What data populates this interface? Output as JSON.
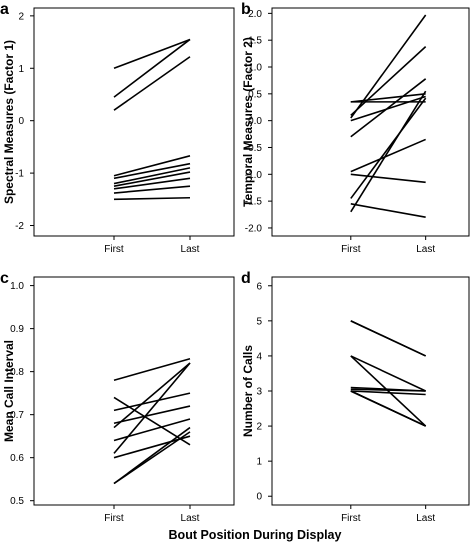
{
  "figure": {
    "xlabel": "Bout Position During Display"
  },
  "chart_data": [
    {
      "type": "line",
      "panel": "a",
      "categories": [
        "First",
        "Last"
      ],
      "ylabel": "Spectral Measures (Factor 1)",
      "ylim": [
        -2.2,
        2.15
      ],
      "yticks": [
        -2,
        -1,
        0,
        1,
        2
      ],
      "ytick_labels": [
        "-2",
        "-1",
        "0",
        "1",
        "2"
      ],
      "series": [
        {
          "values": [
            1.0,
            1.55
          ]
        },
        {
          "values": [
            0.45,
            1.55
          ]
        },
        {
          "values": [
            0.2,
            1.22
          ]
        },
        {
          "values": [
            -1.05,
            -0.67
          ]
        },
        {
          "values": [
            -1.1,
            -0.82
          ]
        },
        {
          "values": [
            -1.2,
            -0.9
          ]
        },
        {
          "values": [
            -1.25,
            -0.98
          ]
        },
        {
          "values": [
            -1.3,
            -1.1
          ]
        },
        {
          "values": [
            -1.38,
            -1.25
          ]
        },
        {
          "values": [
            -1.5,
            -1.47
          ]
        }
      ]
    },
    {
      "type": "line",
      "panel": "b",
      "categories": [
        "First",
        "Last"
      ],
      "ylabel": "Temporal Measures (Factor 2)",
      "ylim": [
        -2.15,
        2.1
      ],
      "yticks": [
        -2.0,
        -1.5,
        -1.0,
        -0.5,
        0.0,
        0.5,
        1.0,
        1.5,
        2.0
      ],
      "ytick_labels": [
        "-2.0",
        "-1.5",
        "-1.0",
        "-0.5",
        "0.0",
        "0.5",
        "1.0",
        "1.5",
        "2.0"
      ],
      "series": [
        {
          "values": [
            0.05,
            1.97
          ]
        },
        {
          "values": [
            0.1,
            1.38
          ]
        },
        {
          "values": [
            -0.3,
            0.78
          ]
        },
        {
          "values": [
            0.0,
            0.45
          ]
        },
        {
          "values": [
            0.35,
            0.35
          ]
        },
        {
          "values": [
            0.35,
            0.5
          ]
        },
        {
          "values": [
            -1.45,
            0.42
          ]
        },
        {
          "values": [
            -1.7,
            0.55
          ]
        },
        {
          "values": [
            -0.95,
            -0.35
          ]
        },
        {
          "values": [
            -1.0,
            -1.15
          ]
        },
        {
          "values": [
            -1.55,
            -1.8
          ]
        }
      ]
    },
    {
      "type": "line",
      "panel": "c",
      "categories": [
        "First",
        "Last"
      ],
      "ylabel": "Mean Call Interval",
      "ylim": [
        0.49,
        1.02
      ],
      "yticks": [
        0.5,
        0.6,
        0.7,
        0.8,
        0.9,
        1.0
      ],
      "ytick_labels": [
        "0.5",
        "0.6",
        "0.7",
        "0.8",
        "0.9",
        "1.0"
      ],
      "series": [
        {
          "values": [
            0.78,
            0.83
          ]
        },
        {
          "values": [
            0.74,
            0.63
          ]
        },
        {
          "values": [
            0.71,
            0.75
          ]
        },
        {
          "values": [
            0.68,
            0.72
          ]
        },
        {
          "values": [
            0.67,
            0.82
          ]
        },
        {
          "values": [
            0.64,
            0.69
          ]
        },
        {
          "values": [
            0.6,
            0.65
          ]
        },
        {
          "values": [
            0.61,
            0.82
          ]
        },
        {
          "values": [
            0.54,
            0.67
          ]
        },
        {
          "values": [
            0.54,
            0.66
          ]
        }
      ]
    },
    {
      "type": "line",
      "panel": "d",
      "categories": [
        "First",
        "Last"
      ],
      "ylabel": "Number of Calls",
      "ylim": [
        -0.25,
        6.25
      ],
      "yticks": [
        0,
        1,
        2,
        3,
        4,
        5,
        6
      ],
      "ytick_labels": [
        "0",
        "1",
        "2",
        "3",
        "4",
        "5",
        "6"
      ],
      "series": [
        {
          "values": [
            5.0,
            4.0
          ]
        },
        {
          "values": [
            5.0,
            4.0
          ]
        },
        {
          "values": [
            4.0,
            3.0
          ]
        },
        {
          "values": [
            4.0,
            2.0
          ]
        },
        {
          "values": [
            3.1,
            3.0
          ]
        },
        {
          "values": [
            3.05,
            3.0
          ]
        },
        {
          "values": [
            3.0,
            2.9
          ]
        },
        {
          "values": [
            3.0,
            2.0
          ]
        },
        {
          "values": [
            3.0,
            2.0
          ]
        },
        {
          "values": [
            3.0,
            2.0
          ]
        }
      ]
    }
  ]
}
